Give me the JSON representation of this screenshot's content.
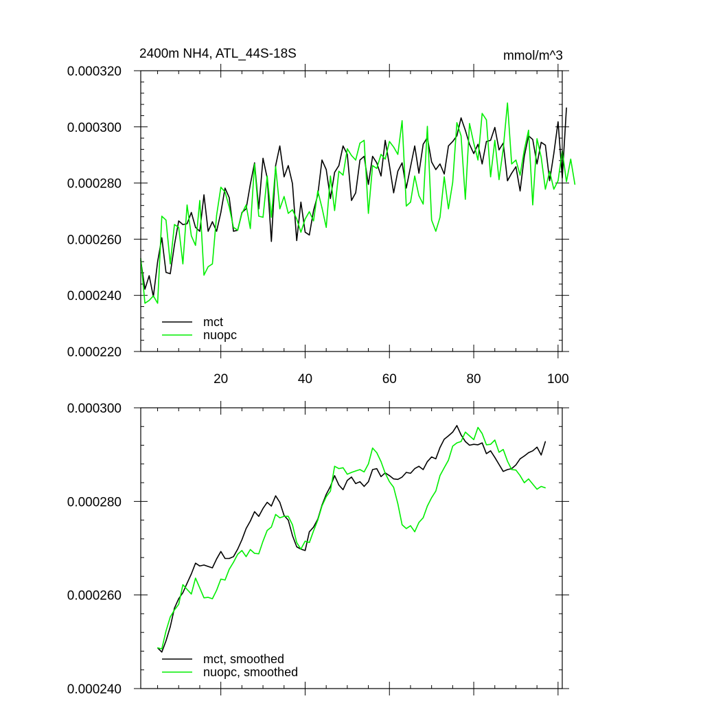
{
  "chart_data": [
    {
      "type": "line",
      "title": "2400m NH4, ATL_44S-18S",
      "units": "mmol/m^3",
      "xlim": [
        1,
        101
      ],
      "ylim": [
        0.00022,
        0.00032
      ],
      "x_ticks": [
        20,
        40,
        60,
        80,
        100
      ],
      "y_ticks": [
        0.00022,
        0.00024,
        0.00026,
        0.00028,
        0.0003,
        0.00032
      ],
      "y_tick_labels": [
        "0.000220",
        "0.000240",
        "0.000260",
        "0.000280",
        "0.000300",
        "0.000320"
      ],
      "legend_position": "bottom-left",
      "series": [
        {
          "name": "mct",
          "color": "#000000",
          "values": [
            0.0002525,
            0.0002422,
            0.000247,
            0.0002395,
            0.000252,
            0.0002605,
            0.0002482,
            0.0002477,
            0.000258,
            0.0002665,
            0.0002652,
            0.0002655,
            0.0002695,
            0.0002642,
            0.0002628,
            0.0002758,
            0.0002628,
            0.0002662,
            0.0002628,
            0.0002695,
            0.0002782,
            0.0002748,
            0.0002628,
            0.0002632,
            0.0002695,
            0.0002708,
            0.0002795,
            0.0002872,
            0.0002708,
            0.0002888,
            0.0002818,
            0.0002592,
            0.0002862,
            0.0002932,
            0.0002822,
            0.0002862,
            0.0002798,
            0.0002595,
            0.0002732,
            0.0002625,
            0.0002615,
            0.0002702,
            0.0002758,
            0.0002882,
            0.0002848,
            0.0002745,
            0.0002838,
            0.0002862,
            0.0002932,
            0.0002902,
            0.0002738,
            0.0002765,
            0.0002882,
            0.0002895,
            0.0002795,
            0.0002895,
            0.0002872,
            0.0002825,
            0.0002952,
            0.0002862,
            0.0002765,
            0.0002842,
            0.0002872,
            0.0002782,
            0.0002858,
            0.0002932,
            0.0002835,
            0.0002938,
            0.0002962,
            0.0002875,
            0.0002848,
            0.0002868,
            0.0002832,
            0.0002932,
            0.0002948,
            0.0002968,
            0.0003032,
            0.0002988,
            0.0002938,
            0.0002905,
            0.0002938,
            0.0002868,
            0.0002948,
            0.0002952,
            0.0002998,
            0.0002918,
            0.0002942,
            0.0002808,
            0.0002835,
            0.0002858,
            0.0002772,
            0.0002895,
            0.0002968,
            0.0002955,
            0.0002868,
            0.0002945,
            0.0002935,
            0.0002808,
            0.0002905,
            0.0003018,
            0.0002818,
            0.0003068
          ]
        },
        {
          "name": "nuopc",
          "color": "#00ee00",
          "values": [
            0.0002532,
            0.0002372,
            0.0002382,
            0.0002398,
            0.0002372,
            0.0002682,
            0.0002668,
            0.0002512,
            0.0002652,
            0.0002642,
            0.0002512,
            0.0002722,
            0.0002612,
            0.0002578,
            0.0002738,
            0.0002472,
            0.0002502,
            0.0002512,
            0.0002685,
            0.0002785,
            0.0002768,
            0.0002715,
            0.0002642,
            0.0002632,
            0.0002692,
            0.0002722,
            0.0002638,
            0.0002868,
            0.0002682,
            0.0002678,
            0.0002825,
            0.0002678,
            0.0002858,
            0.0002708,
            0.0002752,
            0.0002692,
            0.0002705,
            0.0002672,
            0.0002625,
            0.0002672,
            0.0002698,
            0.0002665,
            0.0002772,
            0.0002712,
            0.0002642,
            0.0002825,
            0.0002702,
            0.0002842,
            0.0002828,
            0.0002922,
            0.0002898,
            0.0002882,
            0.0002942,
            0.0002952,
            0.0002692,
            0.0002862,
            0.0002852,
            0.0002902,
            0.0002885,
            0.0002948,
            0.0002928,
            0.0002902,
            0.0003022,
            0.0002718,
            0.0002732,
            0.0002825,
            0.0002755,
            0.0002725,
            0.0003002,
            0.0002668,
            0.0002628,
            0.0002678,
            0.0002822,
            0.0002708,
            0.0002802,
            0.0003015,
            0.0002968,
            0.0002742,
            0.0003012,
            0.0002942,
            0.0002882,
            0.0003048,
            0.0003025,
            0.0002822,
            0.0002952,
            0.0002812,
            0.0002922,
            0.0003085,
            0.0002868,
            0.0002882,
            0.0002828,
            0.0002918,
            0.0002988,
            0.0002722,
            0.0002958,
            0.0002892,
            0.0002778,
            0.0002842,
            0.0002778,
            0.0002808,
            0.0002915,
            0.0002805,
            0.0002885,
            0.0002795
          ]
        }
      ]
    },
    {
      "type": "line",
      "title": "",
      "xlim": [
        1,
        101
      ],
      "ylim": [
        0.00024,
        0.0003
      ],
      "x_ticks": [
        20,
        40,
        60,
        80,
        100
      ],
      "x_tick_labels_shown": false,
      "y_ticks": [
        0.00024,
        0.00026,
        0.00028,
        0.0003
      ],
      "y_tick_labels": [
        "0.000240",
        "0.000260",
        "0.000280",
        "0.000300"
      ],
      "legend_position": "bottom-left",
      "series": [
        {
          "name": "mct, smoothed",
          "color": "#000000",
          "x_start": 5,
          "values": [
            0.0002487,
            0.0002478,
            0.0002502,
            0.0002532,
            0.0002572,
            0.0002592,
            0.0002605,
            0.0002625,
            0.0002645,
            0.0002668,
            0.0002662,
            0.0002664,
            0.0002661,
            0.0002658,
            0.0002677,
            0.0002693,
            0.0002678,
            0.0002678,
            0.0002682,
            0.0002698,
            0.0002718,
            0.0002742,
            0.0002758,
            0.0002778,
            0.0002768,
            0.0002785,
            0.0002798,
            0.000279,
            0.0002812,
            0.0002798,
            0.000277,
            0.000276,
            0.0002727,
            0.0002703,
            0.0002698,
            0.0002695,
            0.0002735,
            0.0002745,
            0.0002762,
            0.0002792,
            0.0002815,
            0.0002832,
            0.0002855,
            0.0002835,
            0.0002825,
            0.0002845,
            0.0002852,
            0.0002838,
            0.0002842,
            0.0002832,
            0.0002842,
            0.0002868,
            0.000287,
            0.0002853,
            0.0002861,
            0.0002855,
            0.0002848,
            0.0002847,
            0.0002852,
            0.0002862,
            0.000286,
            0.000287,
            0.0002875,
            0.0002868,
            0.0002885,
            0.0002895,
            0.0002891,
            0.0002915,
            0.0002933,
            0.000294,
            0.0002948,
            0.0002962,
            0.0002942,
            0.0002928,
            0.000292,
            0.0002922,
            0.0002921,
            0.0002925,
            0.0002902,
            0.0002908,
            0.0002894,
            0.0002879,
            0.0002864,
            0.0002868,
            0.000287,
            0.0002878,
            0.0002891,
            0.0002897,
            0.0002904,
            0.0002908,
            0.0002916,
            0.0002899,
            0.0002928
          ]
        },
        {
          "name": "nuopc, smoothed",
          "color": "#00ee00",
          "x_start": 5,
          "values": [
            0.0002487,
            0.0002485,
            0.0002523,
            0.0002553,
            0.0002568,
            0.000258,
            0.0002622,
            0.0002612,
            0.0002602,
            0.0002636,
            0.0002615,
            0.0002594,
            0.0002595,
            0.0002592,
            0.000261,
            0.0002634,
            0.0002632,
            0.0002655,
            0.000267,
            0.0002687,
            0.0002695,
            0.0002682,
            0.0002697,
            0.0002689,
            0.0002688,
            0.0002715,
            0.0002738,
            0.0002745,
            0.0002772,
            0.0002765,
            0.0002768,
            0.0002768,
            0.000275,
            0.0002712,
            0.0002698,
            0.0002715,
            0.0002712,
            0.0002737,
            0.000276,
            0.000279,
            0.000281,
            0.0002822,
            0.0002875,
            0.000287,
            0.0002872,
            0.0002858,
            0.0002862,
            0.0002865,
            0.0002868,
            0.0002863,
            0.000288,
            0.0002914,
            0.0002904,
            0.0002885,
            0.000286,
            0.0002842,
            0.000283,
            0.0002795,
            0.000275,
            0.0002742,
            0.0002748,
            0.0002735,
            0.0002755,
            0.0002765,
            0.000279,
            0.0002808,
            0.0002822,
            0.0002855,
            0.0002872,
            0.0002888,
            0.0002918,
            0.0002925,
            0.0002928,
            0.0002948,
            0.000294,
            0.0002932,
            0.0002958,
            0.0002945,
            0.0002921,
            0.0002922,
            0.0002931,
            0.0002905,
            0.0002911,
            0.0002886,
            0.0002868,
            0.0002867,
            0.0002855,
            0.000284,
            0.0002848,
            0.0002837,
            0.0002826,
            0.0002832,
            0.0002829
          ]
        }
      ]
    }
  ]
}
